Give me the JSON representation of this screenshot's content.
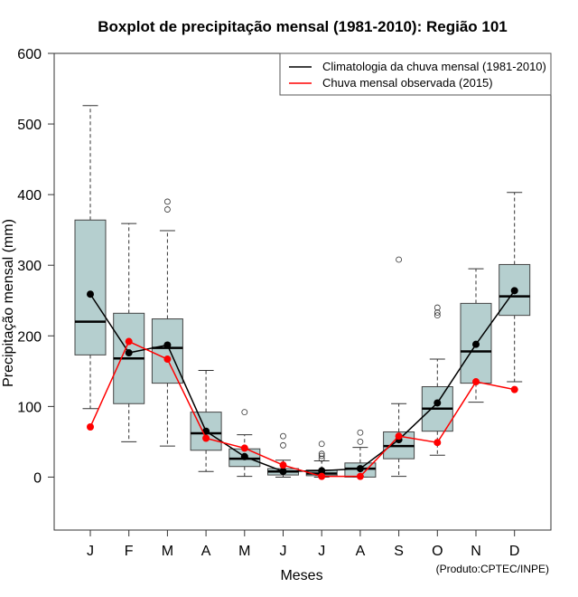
{
  "chart_data": {
    "type": "boxplot",
    "title": "Boxplot de precipitação mensal (1981-2010): Região 101",
    "xlabel": "Meses",
    "ylabel": "Precipitação mensal (mm)",
    "ylim": [
      -75,
      600
    ],
    "yticks": [
      0,
      100,
      200,
      300,
      400,
      500,
      600
    ],
    "categories": [
      "J",
      "F",
      "M",
      "A",
      "M",
      "J",
      "J",
      "A",
      "S",
      "O",
      "N",
      "D"
    ],
    "boxes": [
      {
        "whisker_low": 97,
        "q1": 173,
        "median": 220,
        "q3": 364,
        "whisker_high": 526,
        "outliers": []
      },
      {
        "whisker_low": 50,
        "q1": 104,
        "median": 168,
        "q3": 232,
        "whisker_high": 359,
        "outliers": []
      },
      {
        "whisker_low": 44,
        "q1": 133,
        "median": 183,
        "q3": 224,
        "whisker_high": 349,
        "outliers": [
          379,
          390
        ]
      },
      {
        "whisker_low": 8,
        "q1": 38,
        "median": 62,
        "q3": 92,
        "whisker_high": 151,
        "outliers": []
      },
      {
        "whisker_low": 1,
        "q1": 15,
        "median": 26,
        "q3": 40,
        "whisker_high": 60,
        "outliers": [
          92
        ]
      },
      {
        "whisker_low": 0,
        "q1": 3,
        "median": 8,
        "q3": 12,
        "whisker_high": 24,
        "outliers": [
          45,
          58
        ]
      },
      {
        "whisker_low": 0,
        "q1": 2,
        "median": 5,
        "q3": 10,
        "whisker_high": 23,
        "outliers": [
          26,
          30,
          33,
          47
        ]
      },
      {
        "whisker_low": 0,
        "q1": 0,
        "median": 12,
        "q3": 20,
        "whisker_high": 42,
        "outliers": [
          50,
          63
        ]
      },
      {
        "whisker_low": 1,
        "q1": 26,
        "median": 44,
        "q3": 64,
        "whisker_high": 104,
        "outliers": [
          308
        ]
      },
      {
        "whisker_low": 31,
        "q1": 65,
        "median": 97,
        "q3": 128,
        "whisker_high": 167,
        "outliers": [
          229,
          233,
          240
        ]
      },
      {
        "whisker_low": 106,
        "q1": 133,
        "median": 178,
        "q3": 246,
        "whisker_high": 295,
        "outliers": []
      },
      {
        "whisker_low": 135,
        "q1": 229,
        "median": 256,
        "q3": 301,
        "whisker_high": 403,
        "outliers": []
      }
    ],
    "series": [
      {
        "name": "Climatologia da chuva mensal (1981-2010)",
        "color": "#000000",
        "values": [
          259,
          176,
          187,
          65,
          29,
          8,
          9,
          12,
          53,
          105,
          188,
          264
        ]
      },
      {
        "name": "Chuva mensal observada (2015)",
        "color": "#ff0000",
        "values": [
          71,
          192,
          167,
          55,
          41,
          17,
          1,
          1,
          58,
          49,
          135,
          124
        ]
      }
    ],
    "box_fill": "#b5cfcf",
    "legend_position": "top-right",
    "grid": false,
    "credit": "(Produto:CPTEC/INPE)"
  }
}
